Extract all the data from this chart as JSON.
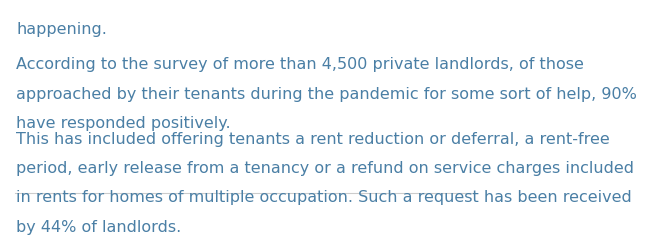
{
  "background_color": "#ffffff",
  "text_color": "#4a7fa5",
  "line_color": "#cccccc",
  "line1": "happening.",
  "paragraph1_line1": "According to the survey of more than 4,500 private landlords, of those",
  "paragraph1_line2": "approached by their tenants during the pandemic for some sort of help, 90%",
  "paragraph1_line3": "have responded positively.",
  "paragraph2_line1": "This has included offering tenants a rent reduction or deferral, a rent-free",
  "paragraph2_line2": "period, early release from a tenancy or a refund on service charges included",
  "paragraph2_line3": "in rents for homes of multiple occupation. Such a request has been received",
  "paragraph2_line4": "by 44% of landlords.",
  "font_size": 11.5,
  "line1_font_size": 11.5
}
